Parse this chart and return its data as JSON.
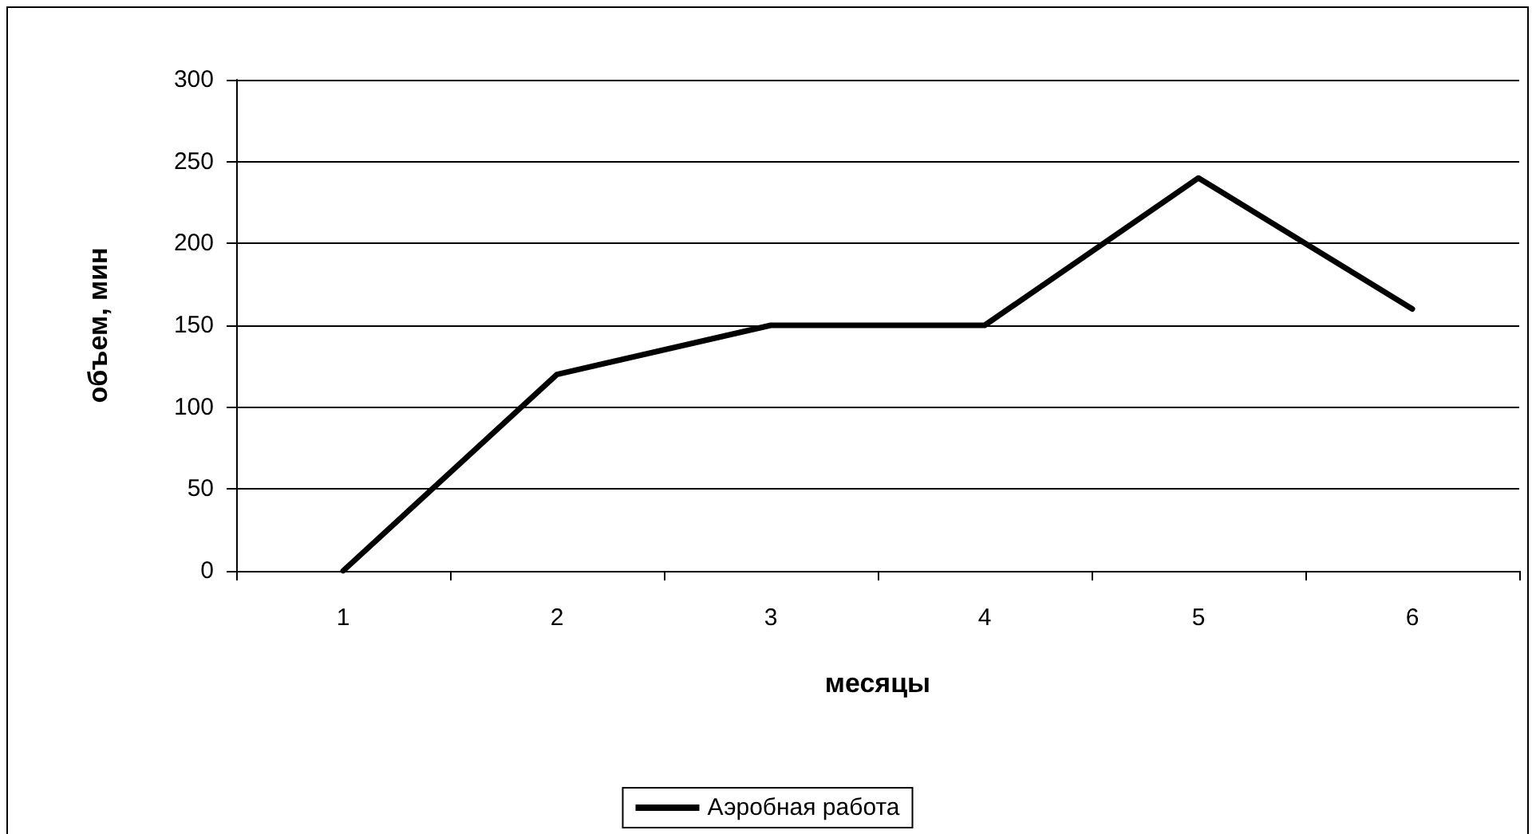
{
  "chart_data": {
    "type": "line",
    "xlabel": "месяцы",
    "ylabel": "объем, мин",
    "categories": [
      "1",
      "2",
      "3",
      "4",
      "5",
      "6"
    ],
    "series": [
      {
        "name": "Аэробная работа",
        "color": "#000000",
        "values": [
          0,
          120,
          150,
          150,
          240,
          160
        ]
      }
    ],
    "ylim": [
      0,
      300
    ],
    "yticks": [
      0,
      50,
      100,
      150,
      200,
      250,
      300
    ],
    "grid": "y",
    "legend": "bottom",
    "marker": "none",
    "line_style": "solid"
  }
}
